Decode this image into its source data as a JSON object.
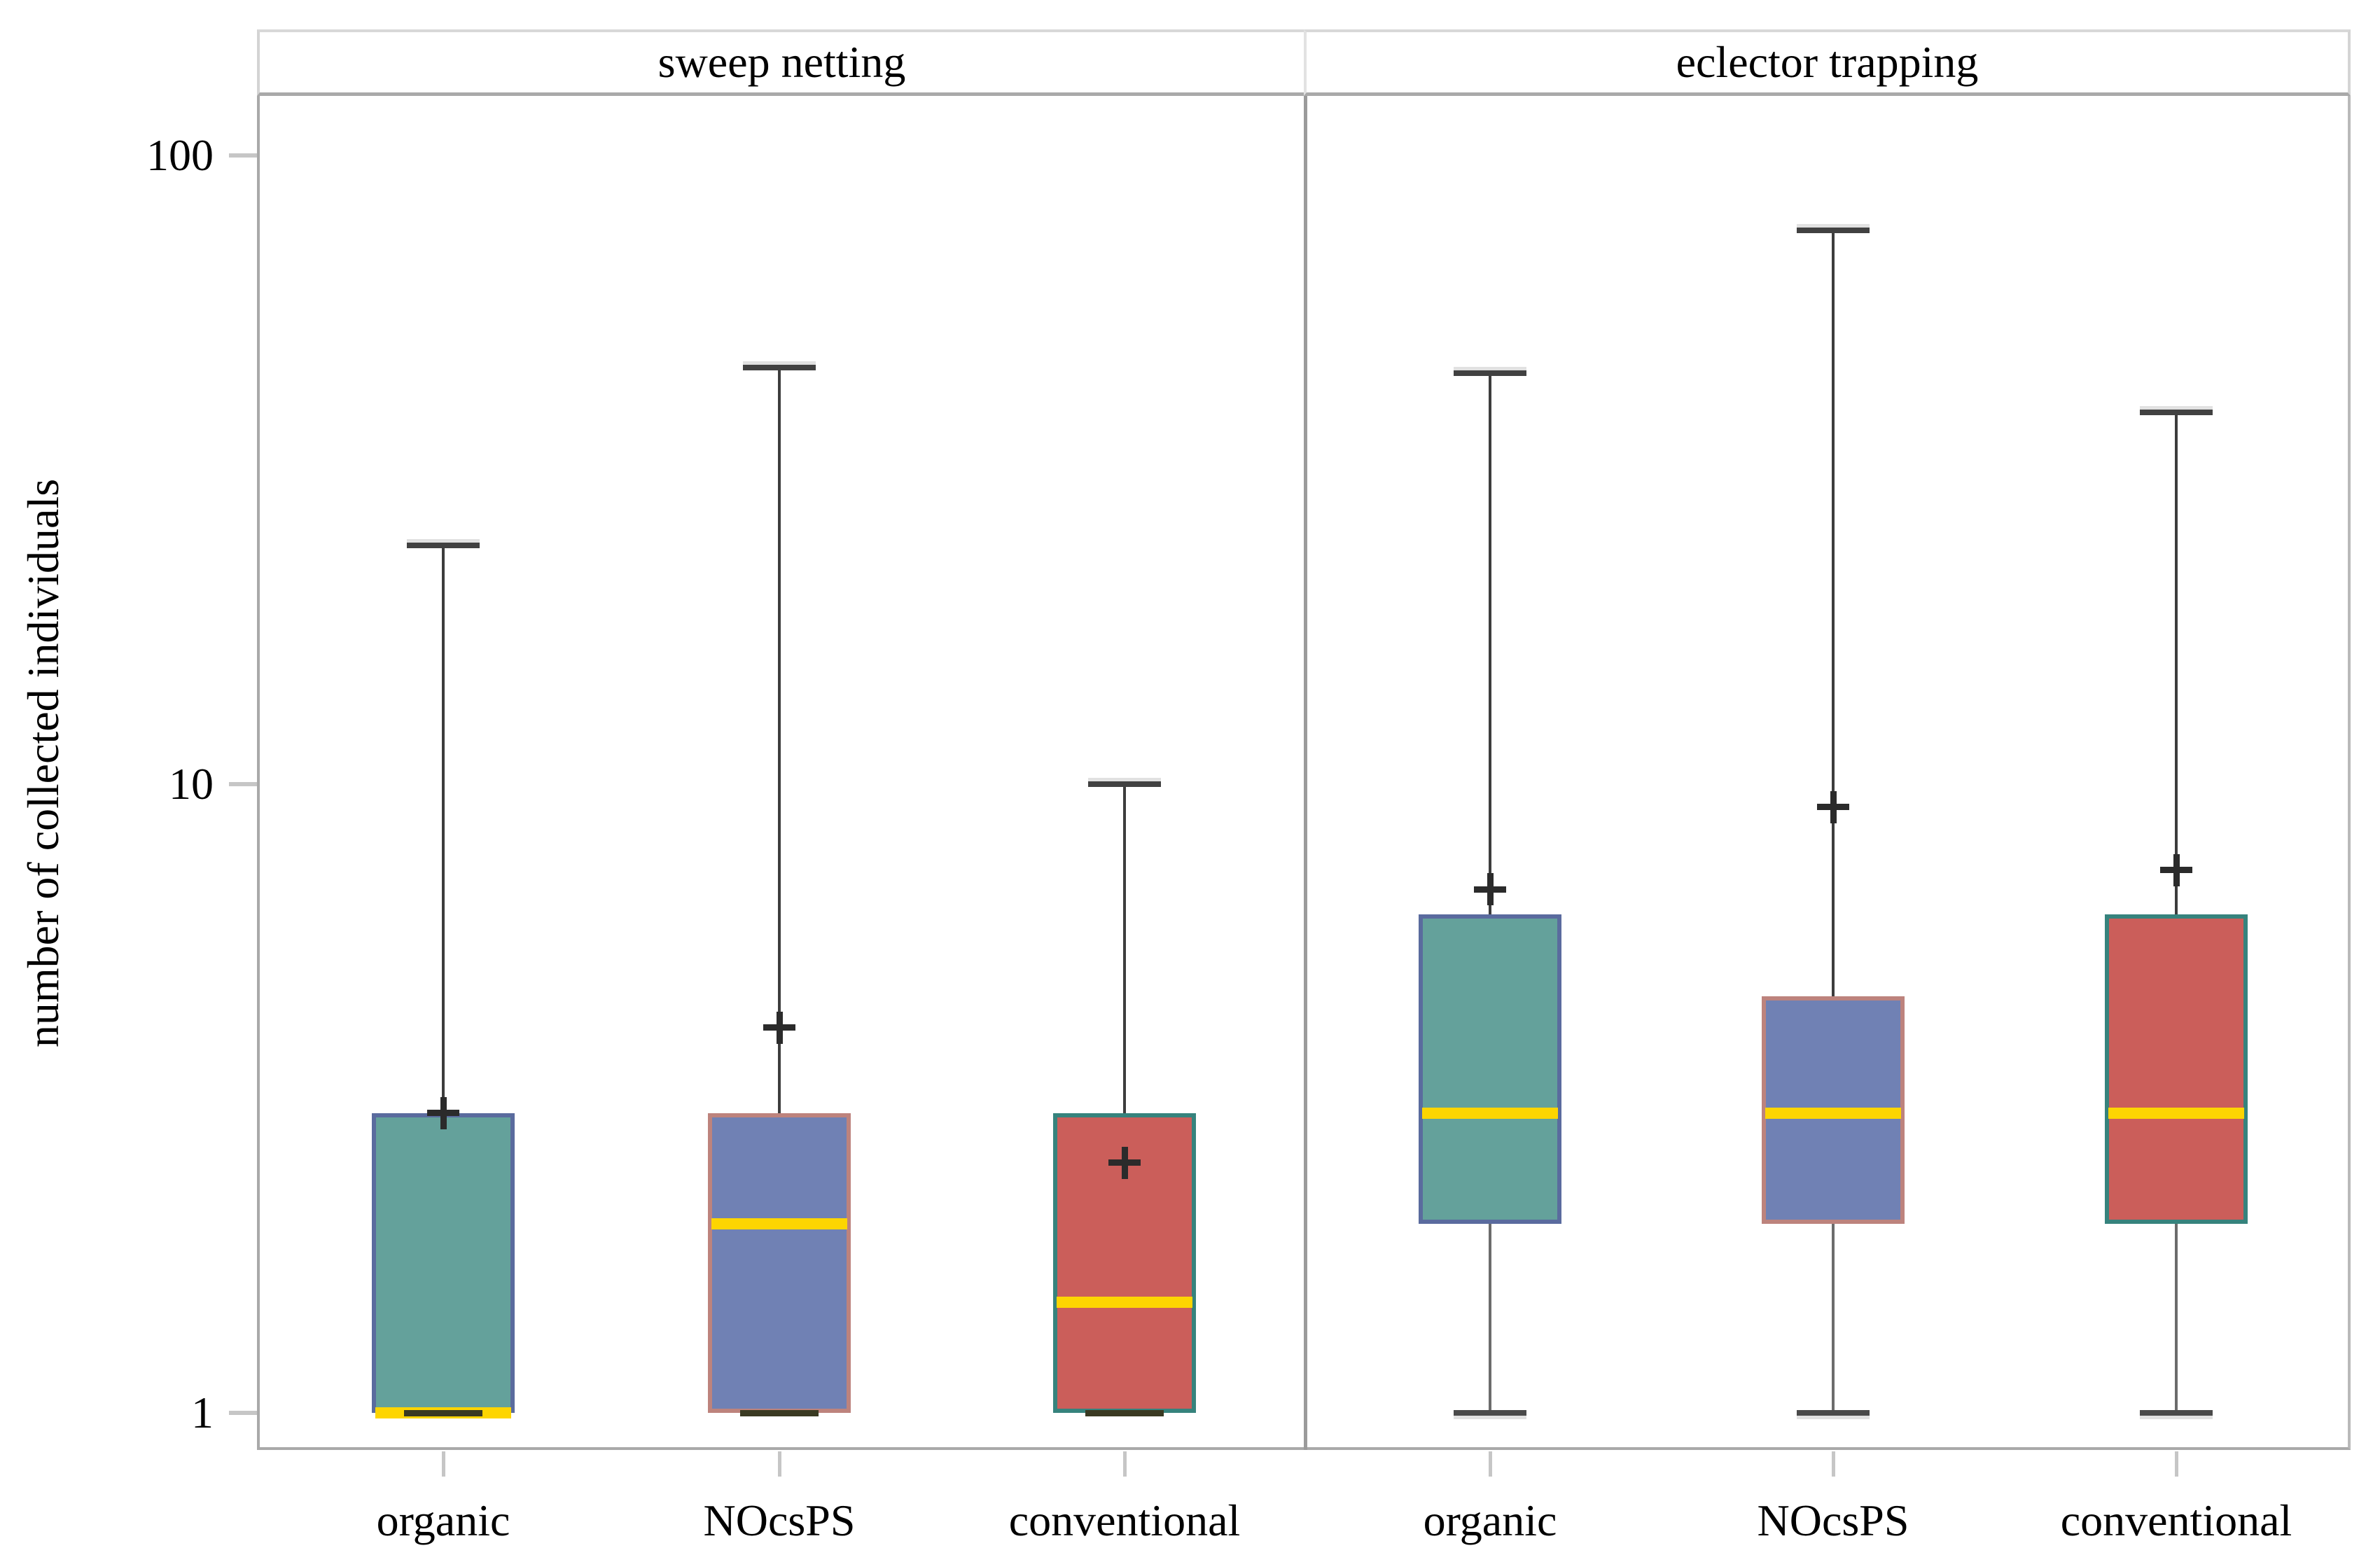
{
  "y_axis": {
    "title": "number of collected individuals",
    "scale": "log",
    "ticks": [
      "100",
      "10",
      "1"
    ],
    "tick_values": [
      100,
      10,
      1
    ]
  },
  "x_axis": {
    "categories": [
      "organic",
      "NOcsPS",
      "conventional"
    ]
  },
  "colors": {
    "median": "#fdd501",
    "teal_fill": "#64a19b",
    "blue_fill": "#7081b4",
    "red_fill": "#cb5e5a",
    "organic_border": "#5a6b9e",
    "nocsps_border": "#bd837d",
    "conventional_border": "#36837d",
    "panel_border": "#a9a9a9",
    "tick": "#c6c6c6",
    "whisker": "#3d3d3d",
    "mean_marker": "#2b2b2b"
  },
  "chart_data": {
    "type": "box",
    "yscale": "log",
    "ylabel": "number of collected individuals",
    "ylim": [
      0.87,
      123
    ],
    "ytick_values": [
      1,
      10,
      100
    ],
    "grid": false,
    "legend": "none",
    "median_color": "#fdd501",
    "mean_marker": "plus",
    "categories": [
      "organic",
      "NOcsPS",
      "conventional"
    ],
    "panels": [
      {
        "title": "sweep netting",
        "boxes": [
          {
            "category": "organic",
            "min": 1,
            "q1": 1,
            "median": 1,
            "q3": 3,
            "max": 24,
            "mean": 3.0,
            "fill": "#64a19b",
            "border": "#5a6b9e"
          },
          {
            "category": "NOcsPS",
            "min": 1,
            "q1": 1,
            "median": 2,
            "q3": 3,
            "max": 46,
            "mean": 4.1,
            "fill": "#7081b4",
            "border": "#bd837d"
          },
          {
            "category": "conventional",
            "min": 1,
            "q1": 1,
            "median": 1.5,
            "q3": 3,
            "max": 10,
            "mean": 2.5,
            "fill": "#cb5e5a",
            "border": "#36837d"
          }
        ]
      },
      {
        "title": "eclector trapping",
        "boxes": [
          {
            "category": "organic",
            "min": 1,
            "q1": 2,
            "median": 3,
            "q3": 6.2,
            "max": 45,
            "mean": 6.8,
            "fill": "#64a19b",
            "border": "#5a6b9e"
          },
          {
            "category": "NOcsPS",
            "min": 1,
            "q1": 2,
            "median": 3,
            "q3": 4.6,
            "max": 76,
            "mean": 9.2,
            "fill": "#7081b4",
            "border": "#bd837d"
          },
          {
            "category": "conventional",
            "min": 1,
            "q1": 2,
            "median": 3,
            "q3": 6.2,
            "max": 39,
            "mean": 7.3,
            "fill": "#cb5e5a",
            "border": "#36837d"
          }
        ]
      }
    ]
  }
}
